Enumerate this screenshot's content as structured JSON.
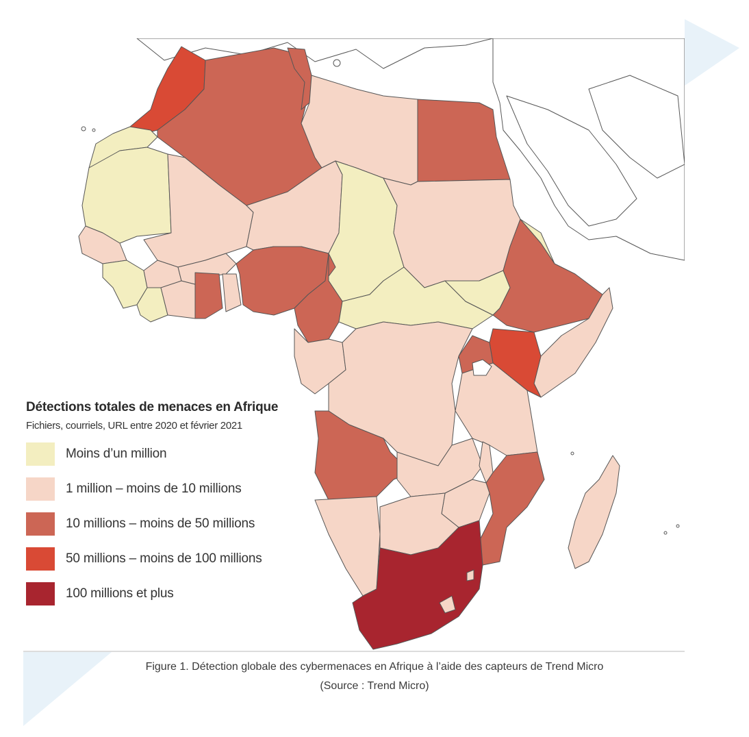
{
  "legend": {
    "title": "Détections totales de menaces en Afrique",
    "subtitle": "Fichiers, courriels, URL entre 2020 et février 2021",
    "items": [
      {
        "label": "Moins d’un million",
        "color": "#f3eec0"
      },
      {
        "label": "1 million – moins de 10 millions",
        "color": "#f6d6c7"
      },
      {
        "label": "10 millions – moins de 50 millions",
        "color": "#cc6655"
      },
      {
        "label": "50 millions – moins de 100 millions",
        "color": "#d94a35"
      },
      {
        "label": "100 millions et plus",
        "color": "#a8252f"
      }
    ]
  },
  "caption": {
    "line1": "Figure 1. Détection globale des cybermenaces en Afrique à l’aide des capteurs de Trend Micro",
    "line2": "(Source : Trend Micro)"
  },
  "colors": {
    "border": "#555555",
    "decoration": "#e8f2f9"
  }
}
